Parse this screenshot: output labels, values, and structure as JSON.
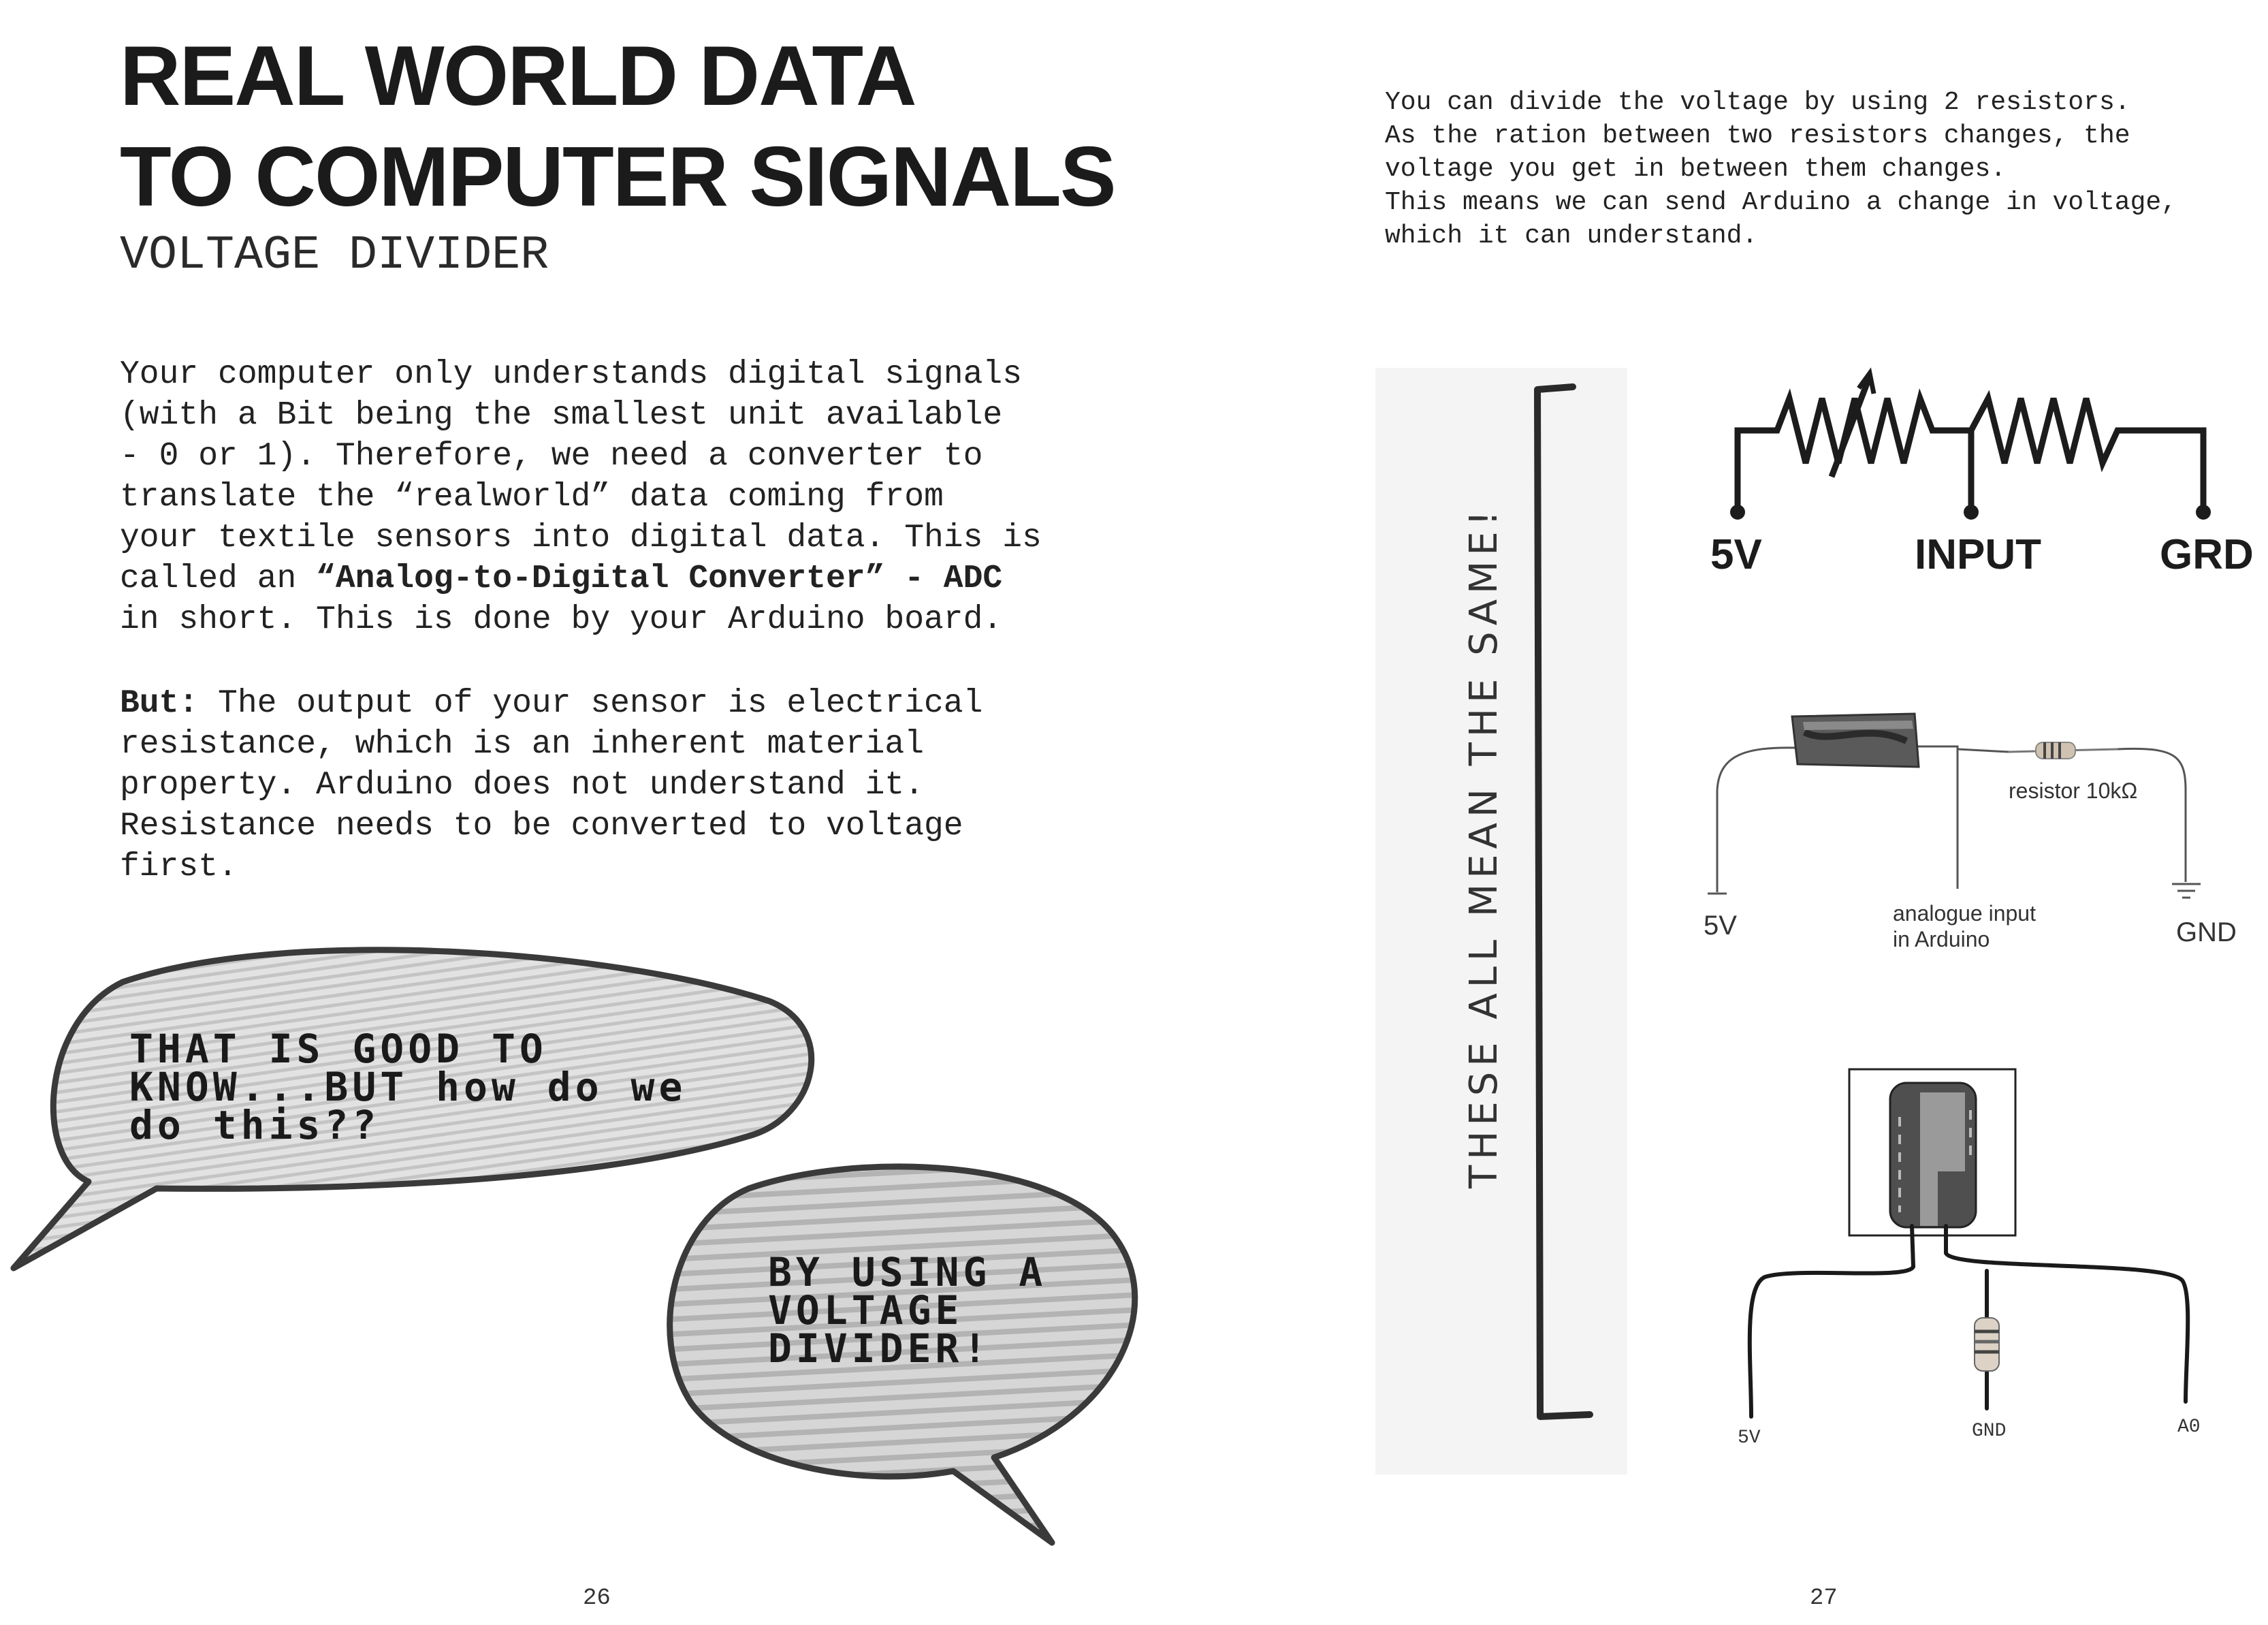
{
  "left_page": {
    "title_line1": "REAL WORLD DATA",
    "title_line2": "TO COMPUTER SIGNALS",
    "subtitle": "VOLTAGE DIVIDER",
    "paragraph1": {
      "line1": "Your computer only understands digital signals",
      "line2": "(with a Bit being the smallest unit available",
      "line3": "- 0 or 1). Therefore, we need a converter to",
      "line4": "translate the “realworld” data coming from",
      "line5": "your textile sensors into digital data. This is",
      "line6_pre": "called an ",
      "line6_bold": "“Analog-to-Digital Converter” - ADC",
      "line7": "in short. This is done by your Arduino board."
    },
    "paragraph2": {
      "bold_lead": "But:",
      "line1_rest": " The output of your sensor is electrical",
      "line2": "resistance, which is an inherent material",
      "line3": "property. Arduino does not understand it.",
      "line4": "Resistance needs to be converted to voltage",
      "line5": "first."
    },
    "bubble1": {
      "line1": "THAT IS GOOD TO",
      "line2": "KNOW...BUT how do we",
      "line3": "do this??"
    },
    "bubble2": {
      "line1": "BY USING A",
      "line2": "VOLTAGE",
      "line3": "DIVIDER!"
    },
    "page_number": "26"
  },
  "right_page": {
    "intro": {
      "line1": "You can divide the voltage by using 2 resistors.",
      "line2": "As the ration between two resistors changes, the",
      "line3": "voltage you get in between them changes.",
      "line4": "This means we can send Arduino a change in voltage,",
      "line5": "which it can understand."
    },
    "handwritten_note": "THESE ALL MEAN THE SAME!",
    "schematic": {
      "label_5v": "5V",
      "label_input": "INPUT",
      "label_grd": "GRD"
    },
    "wiring_diagram": {
      "resistor_label": "resistor 10kΩ",
      "label_5v": "5V",
      "analog_line1": "analogue input",
      "analog_line2": "in Arduino",
      "label_gnd": "GND"
    },
    "sensor_diagram": {
      "label_5v": "5V",
      "label_gnd": "GND",
      "label_a0": "A0"
    },
    "page_number": "27"
  },
  "colors": {
    "ink": "#1b1b1b",
    "paper": "#ffffff",
    "bubble_fill": "#d9d9d9",
    "sketch_bg": "#f3f3f3"
  }
}
